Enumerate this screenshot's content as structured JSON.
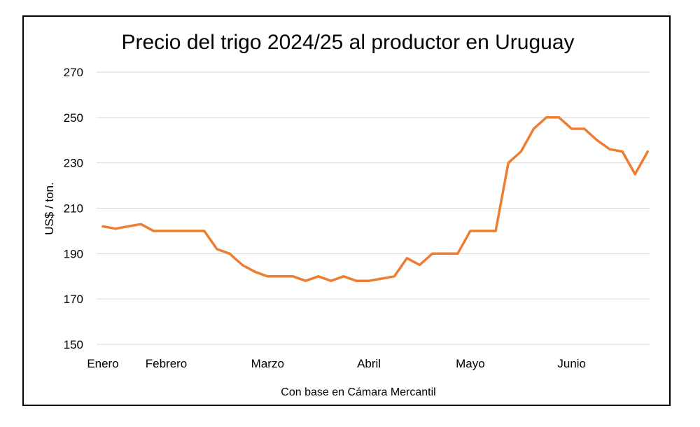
{
  "chart_data": {
    "type": "line",
    "title": "Precio del trigo 2024/25 al productor en Uruguay",
    "xlabel": "Con base en Cámara Mercantil",
    "ylabel": "US$ / ton.",
    "ylim": [
      150,
      270
    ],
    "yticks": [
      150,
      170,
      190,
      210,
      230,
      250,
      270
    ],
    "grid": true,
    "legend": "none",
    "month_labels": [
      "Enero",
      "Febrero",
      "Marzo",
      "Abril",
      "Mayo",
      "Junio"
    ],
    "month_label_index": [
      0,
      5,
      13,
      21,
      29,
      37
    ],
    "series": [
      {
        "color": "#ED7D31",
        "values": [
          202,
          201,
          202,
          203,
          200,
          200,
          200,
          200,
          200,
          192,
          190,
          185,
          182,
          180,
          180,
          180,
          178,
          180,
          178,
          180,
          178,
          178,
          179,
          180,
          188,
          185,
          190,
          190,
          190,
          200,
          200,
          200,
          230,
          235,
          245,
          250,
          250,
          245,
          245,
          240,
          236,
          235,
          225,
          235
        ]
      }
    ]
  }
}
